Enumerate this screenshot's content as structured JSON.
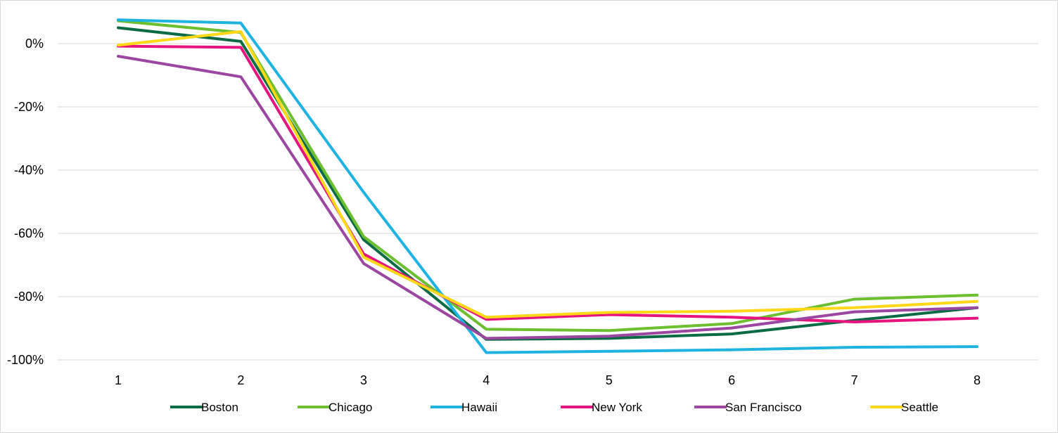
{
  "chart_data": {
    "type": "line",
    "title": "",
    "xlabel": "",
    "ylabel": "",
    "x": [
      1,
      2,
      3,
      4,
      5,
      6,
      7,
      8
    ],
    "x_tick_labels": [
      "1",
      "2",
      "3",
      "4",
      "5",
      "6",
      "7",
      "8"
    ],
    "ylim": [
      -100,
      10
    ],
    "y_ticks": [
      0,
      -20,
      -40,
      -60,
      -80,
      -100
    ],
    "y_tick_labels": [
      "0%",
      "-20%",
      "-40%",
      "-60%",
      "-80%",
      "-100%"
    ],
    "grid": true,
    "legend_position": "bottom",
    "series": [
      {
        "name": "Boston",
        "color": "#0b6b44",
        "values": [
          5,
          0.7,
          -62,
          -93.5,
          -93.2,
          -91.8,
          -87.5,
          -83.5
        ]
      },
      {
        "name": "Chicago",
        "color": "#6cbf2f",
        "values": [
          7.2,
          3.5,
          -61,
          -90.3,
          -90.7,
          -88.5,
          -80.8,
          -79.5
        ]
      },
      {
        "name": "Hawaii",
        "color": "#1fb3e0",
        "values": [
          7.5,
          6.5,
          -47,
          -97.7,
          -97.3,
          -96.8,
          -96.0,
          -95.8
        ]
      },
      {
        "name": "New York",
        "color": "#e6147e",
        "values": [
          -0.8,
          -1.2,
          -66.5,
          -87.2,
          -85.7,
          -86.5,
          -88.0,
          -86.8
        ]
      },
      {
        "name": "San Francisco",
        "color": "#9b46a0",
        "values": [
          -4,
          -10.5,
          -69.5,
          -93.2,
          -92.5,
          -89.9,
          -84.8,
          -83.5
        ]
      },
      {
        "name": "Seattle",
        "color": "#ffd81a",
        "values": [
          -0.5,
          3.8,
          -67.5,
          -86.5,
          -85.0,
          -84.6,
          -83.5,
          -81.5
        ]
      }
    ]
  }
}
